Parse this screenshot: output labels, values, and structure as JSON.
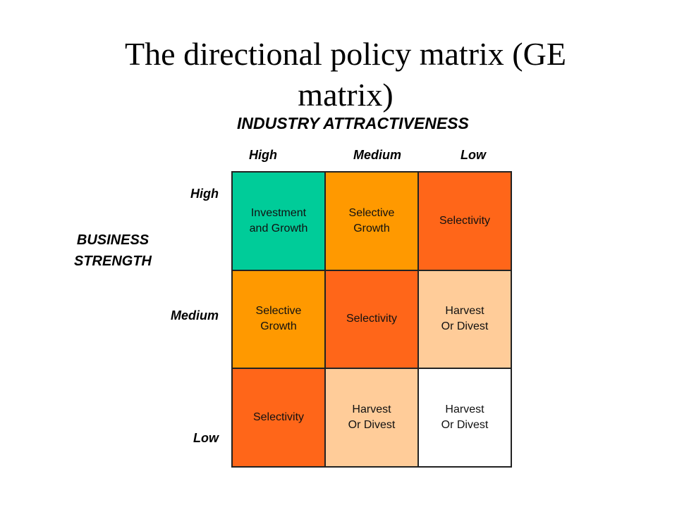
{
  "title": "The directional policy matrix (GE\nmatrix)",
  "x_axis_title": "INDUSTRY ATTRACTIVENESS",
  "y_axis_title": "BUSINESS\nSTRENGTH",
  "columns": [
    "High",
    "Medium",
    "Low"
  ],
  "rows": [
    "High",
    "Medium",
    "Low"
  ],
  "cells": [
    [
      {
        "text": "Investment\nand Growth",
        "color": "#00CC99"
      },
      {
        "text": "Selective\nGrowth",
        "color": "#FF9900"
      },
      {
        "text": "Selectivity",
        "color": "#FF6619"
      }
    ],
    [
      {
        "text": "Selective\nGrowth",
        "color": "#FF9900"
      },
      {
        "text": "Selectivity",
        "color": "#FF6619"
      },
      {
        "text": "Harvest\nOr Divest",
        "color": "#FFCC99"
      }
    ],
    [
      {
        "text": "Selectivity",
        "color": "#FF6619"
      },
      {
        "text": "Harvest\nOr Divest",
        "color": "#FFCC99"
      },
      {
        "text": "Harvest\nOr Divest",
        "color": "#FFFFFF"
      }
    ]
  ]
}
